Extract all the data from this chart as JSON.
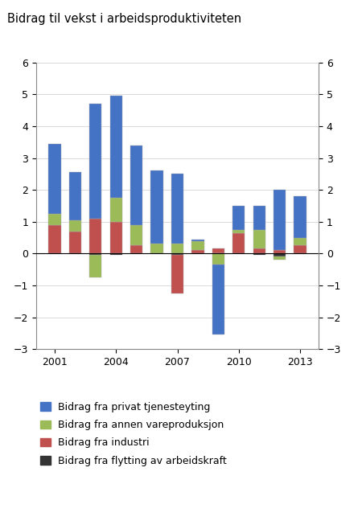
{
  "years": [
    2001,
    2002,
    2003,
    2004,
    2005,
    2006,
    2007,
    2008,
    2009,
    2010,
    2011,
    2012,
    2013
  ],
  "privat_tjenesteyting": [
    2.2,
    1.5,
    3.6,
    3.2,
    2.5,
    2.3,
    2.2,
    0.05,
    -2.2,
    0.75,
    0.75,
    1.9,
    1.3
  ],
  "annen_vareproduksjon": [
    0.35,
    0.35,
    -0.7,
    0.75,
    0.65,
    0.3,
    0.3,
    0.3,
    -0.35,
    0.1,
    0.6,
    -0.1,
    0.25
  ],
  "industri": [
    0.9,
    0.7,
    1.1,
    1.0,
    0.25,
    0.0,
    -1.2,
    0.1,
    0.15,
    0.65,
    0.15,
    0.1,
    0.25
  ],
  "arbeidskraft": [
    0.0,
    0.0,
    -0.05,
    -0.05,
    0.0,
    0.0,
    -0.05,
    0.0,
    0.0,
    0.0,
    -0.05,
    -0.1,
    0.0
  ],
  "color_privat": "#4472C4",
  "color_annen": "#9BBB59",
  "color_industri": "#C0504D",
  "color_arbeid": "#333333",
  "title": "Bidrag til vekst i arbeidsproduktiviteten",
  "ylim": [
    -3,
    6
  ],
  "yticks": [
    -3,
    -2,
    -1,
    0,
    1,
    2,
    3,
    4,
    5,
    6
  ],
  "legend_labels": [
    "Bidrag fra privat tjenesteyting",
    "Bidrag fra annen vareproduksjon",
    "Bidrag fra industri",
    "Bidrag fra flytting av arbeidskraft"
  ],
  "xtick_positions": [
    2001,
    2004,
    2007,
    2010,
    2013
  ],
  "xtick_labels": [
    "2001",
    "2004",
    "2007",
    "2010",
    "2013"
  ]
}
